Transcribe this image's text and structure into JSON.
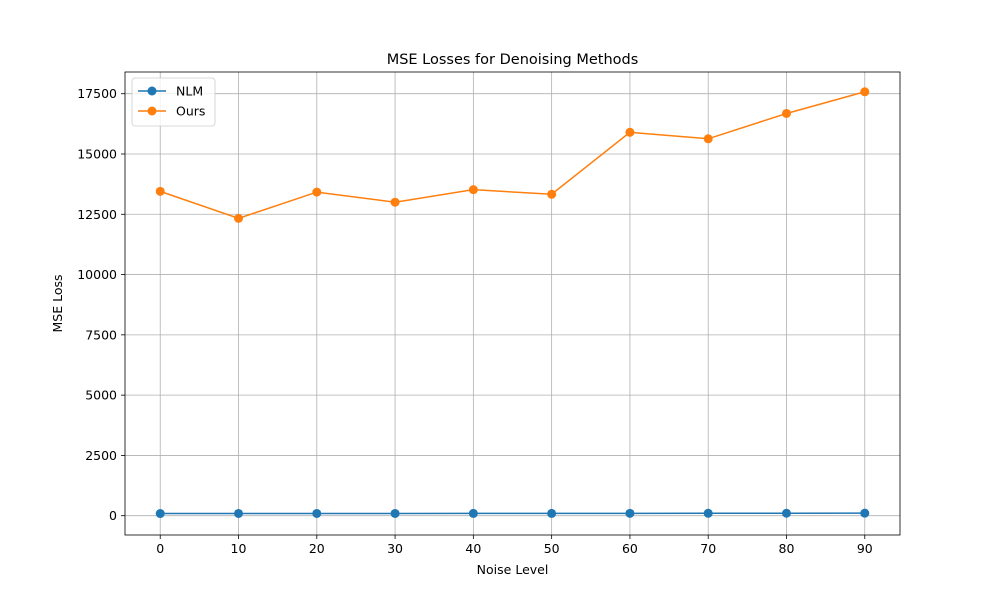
{
  "chart_data": {
    "type": "line",
    "title": "MSE Losses for Denoising Methods",
    "xlabel": "Noise Level",
    "ylabel": "MSE Loss",
    "x": [
      0,
      10,
      20,
      30,
      40,
      50,
      60,
      70,
      80,
      90
    ],
    "xlim": [
      -4.5,
      94.5
    ],
    "ylim": [
      -800,
      18400
    ],
    "xticks": [
      0,
      10,
      20,
      30,
      40,
      50,
      60,
      70,
      80,
      90
    ],
    "yticks": [
      0,
      2500,
      5000,
      7500,
      10000,
      12500,
      15000,
      17500
    ],
    "grid": true,
    "legend_position": "upper-left",
    "series": [
      {
        "name": "NLM",
        "color": "#1f77b4",
        "marker": "circle",
        "values": [
          90,
          92,
          93,
          94,
          95,
          96,
          98,
          100,
          102,
          105
        ]
      },
      {
        "name": "Ours",
        "color": "#ff7f0e",
        "marker": "circle",
        "values": [
          13450,
          12330,
          13420,
          13000,
          13520,
          13330,
          15900,
          15630,
          16680,
          17580
        ]
      }
    ]
  }
}
